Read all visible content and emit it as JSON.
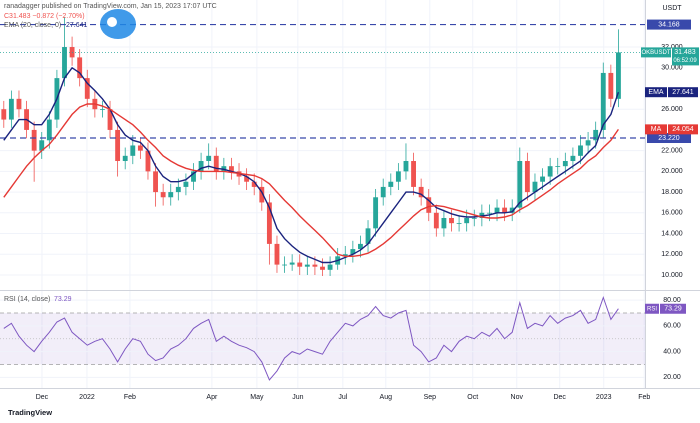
{
  "chart_data": [
    {
      "type": "candlestick",
      "caption": "ranadagger published on TradingView.com, Jan 15, 2023 17:07 UTC",
      "change_text": "C31.483 −0.872 (−2.70%)",
      "symbol": "OKBUSDT",
      "currency": "USDT",
      "countdown": "06:52:09",
      "up_color": "#26a69a",
      "down_color": "#ef5350",
      "grid": true,
      "xlim": [
        -0.5,
        84.5
      ],
      "xticks": [
        {
          "value": 5.03,
          "label": "Dec"
        },
        {
          "value": 10.96,
          "label": "2022"
        },
        {
          "value": 16.62,
          "label": "Feb"
        },
        {
          "value": 27.42,
          "label": "Apr"
        },
        {
          "value": 33.35,
          "label": "May"
        },
        {
          "value": 38.75,
          "label": "Jun"
        },
        {
          "value": 44.68,
          "label": "Jul"
        },
        {
          "value": 50.34,
          "label": "Aug"
        },
        {
          "value": 56.14,
          "label": "Sep"
        },
        {
          "value": 61.8,
          "label": "Oct"
        },
        {
          "value": 67.6,
          "label": "Nov"
        },
        {
          "value": 73.26,
          "label": "Dec"
        },
        {
          "value": 79.06,
          "label": "2023"
        },
        {
          "value": 84.4,
          "label": "Feb"
        }
      ],
      "ylim": [
        8.55,
        36.54
      ],
      "yticks": [
        {
          "value": 10,
          "label": "10.000"
        },
        {
          "value": 12,
          "label": "12.000"
        },
        {
          "value": 14,
          "label": "14.000"
        },
        {
          "value": 16,
          "label": "16.000"
        },
        {
          "value": 18,
          "label": "18.000"
        },
        {
          "value": 20,
          "label": "20.000"
        },
        {
          "value": 22,
          "label": "22.000"
        },
        {
          "value": 26,
          "label": "26.000"
        },
        {
          "value": 30,
          "label": "30.000"
        },
        {
          "value": 32,
          "label": "32.000"
        }
      ],
      "open": [
        26,
        25,
        27,
        26,
        24,
        22,
        23,
        25,
        29,
        32,
        31,
        29,
        27,
        26,
        26,
        24,
        21,
        21.5,
        22.5,
        22,
        20,
        18,
        17.5,
        18,
        18.5,
        19,
        20,
        21,
        21.5,
        20,
        20.5,
        20,
        19.5,
        19,
        18.5,
        17,
        13,
        11,
        11,
        11.2,
        10.8,
        11,
        10.8,
        10.5,
        11,
        11.8,
        12,
        12.5,
        13,
        14.5,
        17.5,
        18.5,
        19,
        20,
        21,
        18.5,
        17.5,
        16,
        14.5,
        15.5,
        15,
        15,
        15.5,
        15.5,
        16,
        16,
        16.5,
        16,
        16.5,
        21,
        18,
        19,
        19.5,
        20.5,
        20.5,
        21,
        21.5,
        22.5,
        23,
        24,
        29.5,
        27
      ],
      "high": [
        26.8,
        27.8,
        27.8,
        26.8,
        24.8,
        23.8,
        25.8,
        29.8,
        34.9,
        33,
        31.8,
        29.8,
        27.8,
        26.8,
        26.8,
        24.8,
        22.3,
        23.5,
        23.3,
        22.8,
        20.8,
        18.8,
        18.8,
        19.3,
        19.8,
        20.8,
        21.8,
        22.7,
        22.3,
        21.3,
        21.3,
        20.8,
        20.3,
        19.8,
        19.3,
        17.8,
        13.8,
        11.8,
        12,
        12,
        11.8,
        11.8,
        11.6,
        11.8,
        12.6,
        12.8,
        13.3,
        13.8,
        15.3,
        18.3,
        19.3,
        19.8,
        20.8,
        22.7,
        21.8,
        19.3,
        18.3,
        16.8,
        16.3,
        16.3,
        15.8,
        16.3,
        16.3,
        16.8,
        16.8,
        17.3,
        17.3,
        17.3,
        22.3,
        21.8,
        19.8,
        20.3,
        21.3,
        21.3,
        21.8,
        22.3,
        23.5,
        23.8,
        24.8,
        30.5,
        30.3,
        33.7
      ],
      "low": [
        24.2,
        24.2,
        25.2,
        23.2,
        19,
        21.2,
        22.2,
        24.2,
        28.2,
        30.2,
        28.2,
        26.2,
        25.2,
        25.2,
        23.2,
        19.5,
        20.2,
        20.7,
        21.2,
        19.2,
        16.6,
        16.7,
        16.7,
        17.2,
        17.7,
        18.2,
        19.2,
        20.2,
        19.2,
        19.2,
        19.2,
        18.7,
        18.2,
        17.7,
        16.2,
        11,
        10.2,
        10.2,
        10.4,
        10,
        10,
        10,
        9.9,
        9.9,
        10.5,
        11,
        11.2,
        11.7,
        12.2,
        13.7,
        16.7,
        17.7,
        18.2,
        19.2,
        17.7,
        16.7,
        15.2,
        13.7,
        13.7,
        14.2,
        14.2,
        14.2,
        14.7,
        14.7,
        15.2,
        15.2,
        15.2,
        15.2,
        16,
        17.2,
        17.2,
        18.2,
        18.7,
        19.7,
        19.7,
        20.2,
        20.7,
        21.7,
        22.2,
        23.2,
        26.2,
        26.2
      ],
      "close": [
        25,
        27,
        26,
        24,
        22,
        23,
        25,
        29,
        32,
        31,
        29,
        27,
        26,
        26,
        24,
        21,
        21.5,
        22.5,
        22,
        20,
        18,
        17.5,
        18,
        18.5,
        19,
        20,
        21,
        21.5,
        20,
        20.5,
        20,
        19.5,
        19,
        18.5,
        17,
        13,
        11,
        11,
        11.2,
        10.8,
        11,
        10.8,
        10.5,
        11,
        11.8,
        12,
        12.5,
        13,
        14.5,
        17.5,
        18.5,
        19,
        20,
        21,
        18.5,
        17.5,
        16,
        14.5,
        15.5,
        15,
        15,
        15.5,
        15.5,
        16,
        16,
        16.5,
        16,
        16.5,
        21,
        18,
        19,
        19.5,
        20.5,
        20.5,
        21,
        21.5,
        22.5,
        23,
        24,
        29.5,
        27,
        31.483
      ],
      "series": [
        {
          "name": "EMA",
          "legend": "EMA (20, close, 0)",
          "color": "#1a237e",
          "values": [
            23,
            24,
            25,
            25,
            24.5,
            24.5,
            25.5,
            27,
            29,
            30,
            29.5,
            28.5,
            27.8,
            27,
            26,
            24.5,
            23.5,
            23,
            22.8,
            22,
            20.5,
            19.5,
            19,
            19,
            19.2,
            19.8,
            20.3,
            20.5,
            20.3,
            20.2,
            20,
            19.8,
            19.5,
            19,
            18,
            16.5,
            14.5,
            13.5,
            12.8,
            12.2,
            11.8,
            11.5,
            11.2,
            11.2,
            11.4,
            11.7,
            12,
            12.4,
            13,
            14,
            15,
            16,
            17,
            18,
            18,
            17.8,
            17.2,
            16.5,
            16.2,
            15.9,
            15.7,
            15.6,
            15.6,
            15.7,
            15.8,
            16,
            16,
            16.1,
            17,
            17.5,
            18,
            18.5,
            19,
            19.5,
            20,
            20.5,
            21,
            21.8,
            22.5,
            24.5,
            25.5,
            27.641
          ]
        },
        {
          "name": "MA",
          "color": "#e53935",
          "values": [
            17.5,
            18.5,
            19.5,
            20.5,
            21.3,
            22,
            22.6,
            23.5,
            24.5,
            25.5,
            26.2,
            26.5,
            26.5,
            26.3,
            26,
            25.5,
            25,
            24.5,
            23.8,
            23,
            22.3,
            21.5,
            21,
            20.6,
            20.3,
            20.1,
            20,
            20,
            20,
            20,
            19.9,
            19.8,
            19.7,
            19.6,
            19.3,
            18.8,
            18,
            17.2,
            16.5,
            15.7,
            15,
            14.3,
            13.6,
            12.8,
            12,
            11.8,
            11.8,
            11.9,
            12.1,
            12.5,
            13,
            13.6,
            14.3,
            15,
            15.7,
            16.3,
            16.6,
            16.7,
            16.6,
            16.4,
            16.2,
            16,
            15.8,
            15.6,
            15.5,
            15.5,
            15.6,
            15.8,
            16.3,
            16.7,
            17.2,
            17.7,
            18.2,
            18.8,
            19.3,
            19.8,
            20.3,
            21,
            21.5,
            22.3,
            23,
            24.054
          ]
        }
      ],
      "hlines": [
        {
          "value": 34.168,
          "label": "34.168"
        },
        {
          "value": 23.22,
          "label": "23.220"
        }
      ],
      "hline_color": "#3949ab",
      "footer": "TradingView"
    },
    {
      "type": "line",
      "name": "RSI",
      "legend": "RSI (14, close)",
      "color": "#7e57c2",
      "ylim": [
        12.5,
        86.3
      ],
      "yticks": [
        {
          "value": 20,
          "label": "20.00"
        },
        {
          "value": 40,
          "label": "40.00"
        },
        {
          "value": 60,
          "label": "60.00"
        },
        {
          "value": 80,
          "label": "80.00"
        }
      ],
      "band": [
        30,
        70
      ],
      "midline": 50,
      "values": [
        58,
        62,
        52,
        45,
        40,
        48,
        55,
        63,
        66,
        55,
        50,
        45,
        48,
        50,
        42,
        32,
        42,
        50,
        48,
        38,
        33,
        35,
        42,
        45,
        50,
        58,
        62,
        65,
        48,
        52,
        48,
        45,
        43,
        40,
        32,
        18,
        25,
        35,
        40,
        38,
        42,
        40,
        38,
        48,
        55,
        62,
        60,
        65,
        68,
        75,
        68,
        66,
        70,
        72,
        45,
        40,
        32,
        35,
        45,
        40,
        48,
        52,
        50,
        55,
        52,
        58,
        50,
        55,
        78,
        58,
        62,
        60,
        68,
        62,
        66,
        68,
        72,
        62,
        65,
        82,
        65,
        73.29
      ]
    }
  ]
}
